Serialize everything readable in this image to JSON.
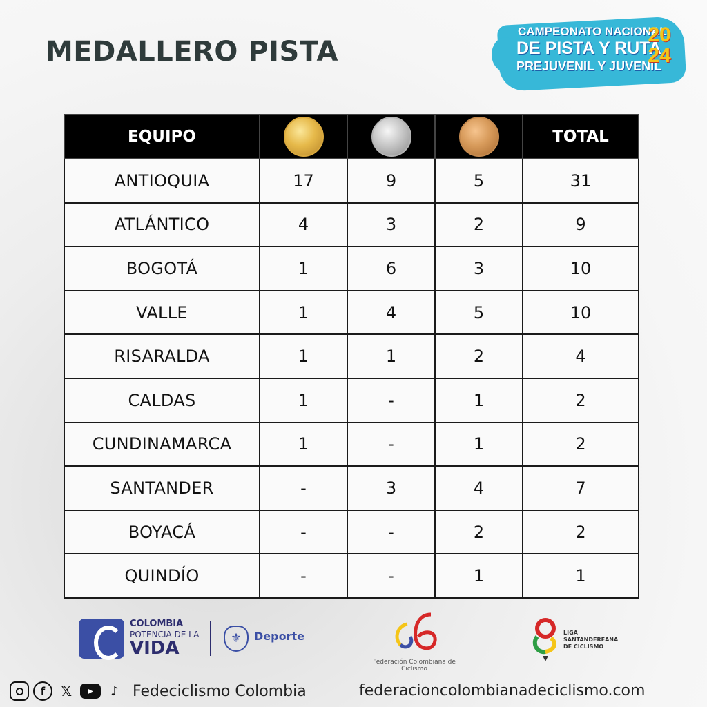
{
  "header": {
    "title": "MEDALLERO PISTA"
  },
  "event_badge": {
    "line1": "CAMPEONATO NACIONAL",
    "line2": "DE PISTA Y RUTA",
    "line3": "PREJUVENIL Y JUVENIL",
    "year_top": "20",
    "year_bottom": "24",
    "colors": {
      "background": "#37b8d8",
      "text": "#ffffff",
      "year": "#f5c518"
    }
  },
  "table": {
    "headers": {
      "team": "EQUIPO",
      "total": "TOTAL"
    },
    "medal_icons": [
      "gold-medal-icon",
      "silver-medal-icon",
      "bronze-medal-icon"
    ],
    "rows": [
      {
        "team": "ANTIOQUIA",
        "gold": "17",
        "silver": "9",
        "bronze": "5",
        "total": "31"
      },
      {
        "team": "ATLÁNTICO",
        "gold": "4",
        "silver": "3",
        "bronze": "2",
        "total": "9"
      },
      {
        "team": "BOGOTÁ",
        "gold": "1",
        "silver": "6",
        "bronze": "3",
        "total": "10"
      },
      {
        "team": "VALLE",
        "gold": "1",
        "silver": "4",
        "bronze": "5",
        "total": "10"
      },
      {
        "team": "RISARALDA",
        "gold": "1",
        "silver": "1",
        "bronze": "2",
        "total": "4"
      },
      {
        "team": "CALDAS",
        "gold": "1",
        "silver": "-",
        "bronze": "1",
        "total": "2"
      },
      {
        "team": "CUNDINAMARCA",
        "gold": "1",
        "silver": "-",
        "bronze": "1",
        "total": "2"
      },
      {
        "team": "SANTANDER",
        "gold": "-",
        "silver": "3",
        "bronze": "4",
        "total": "7"
      },
      {
        "team": "BOYACÁ",
        "gold": "-",
        "silver": "-",
        "bronze": "2",
        "total": "2"
      },
      {
        "team": "QUINDÍO",
        "gold": "-",
        "silver": "-",
        "bronze": "1",
        "total": "1"
      }
    ]
  },
  "footer": {
    "logos": {
      "vida_line1": "COLOMBIA",
      "vida_line2": "POTENCIA DE LA",
      "vida_line3": "VIDA",
      "deporte": "Deporte",
      "federation_caption": "Federación Colombiana de Ciclismo",
      "liga_line1": "LIGA",
      "liga_line2": "SANTANDEREANA",
      "liga_line3": "DE CICLISMO"
    },
    "social_icons": [
      "instagram-icon",
      "facebook-icon",
      "x-icon",
      "youtube-icon",
      "tiktok-icon"
    ],
    "social_handle": "Fedeciclismo Colombia",
    "website": "federacioncolombianadeciclismo.com"
  }
}
